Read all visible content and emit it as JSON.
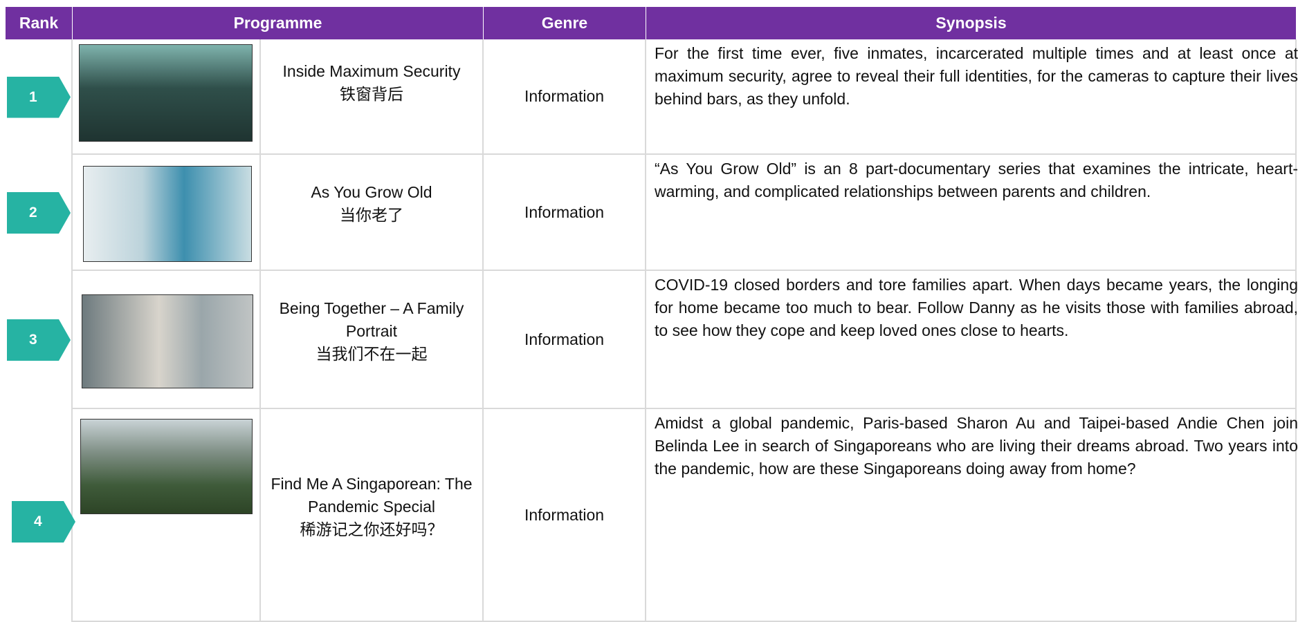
{
  "header": {
    "columns": [
      "Rank",
      "Programme",
      "Genre",
      "Synopsis"
    ]
  },
  "rows": [
    {
      "rank": "1",
      "title": "Inside Maximum Security",
      "chinese_title": "铁窗背后",
      "genre": "Information",
      "synopsis": "For the first time ever, five inmates, incarcerated multiple times and at least once at maximum security, agree to reveal their full identities, for the cameras to capture their lives behind bars, as they unfold."
    },
    {
      "rank": "2",
      "title": "As You Grow Old",
      "chinese_title": "当你老了",
      "genre": "Information",
      "synopsis": "“As You Grow Old” is an 8 part-documentary series that examines the intricate, heart-warming, and complicated relationships between parents and children."
    },
    {
      "rank": "3",
      "title": "Being Together – A Family Portrait",
      "chinese_title": "当我们不在一起",
      "genre": "Information",
      "synopsis": "COVID-19 closed borders and tore families apart. When days became years, the longing for home became too much to bear. Follow Danny as he visits those with families abroad, to see how they cope and keep loved ones close to hearts."
    },
    {
      "rank": "4",
      "title": "Find Me A Singaporean: The Pandemic Special",
      "chinese_title": "稀游记之你还好吗？",
      "genre": "Information",
      "synopsis": "Amidst a global pandemic, Paris-based Sharon Au and Taipei-based Andie Chen join Belinda Lee in search of Singaporeans who are living their dreams abroad. Two years into the pandemic, how are these Singaporeans doing away from home?"
    }
  ]
}
